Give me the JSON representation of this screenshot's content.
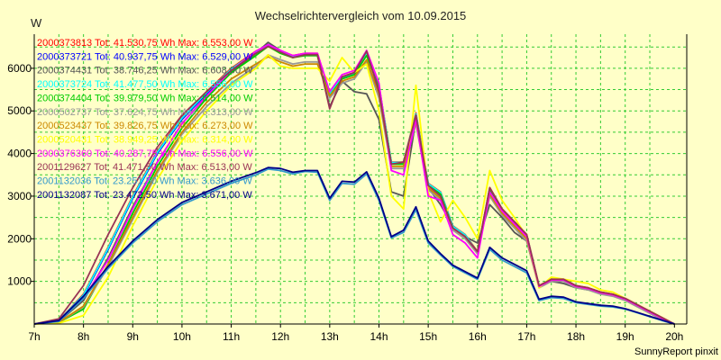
{
  "chart_data": {
    "type": "line",
    "title": "Wechselrichtervergleich vom 10.09.2015",
    "y_unit": "W",
    "ylim": [
      0,
      6800
    ],
    "xlim": [
      7.0,
      20.25
    ],
    "grid": true,
    "legend_position": "top-left",
    "x_tick_labels": [
      "7h",
      "8h",
      "9h",
      "10h",
      "11h",
      "12h",
      "13h",
      "14h",
      "15h",
      "16h",
      "17h",
      "18h",
      "19h",
      "20h"
    ],
    "y_tick_labels": [
      "1000",
      "2000",
      "3000",
      "4000",
      "5000",
      "6000"
    ],
    "footer": "SunnyReport pinxit",
    "series": [
      {
        "name": "2000373813 Tot: 41.530,75 Wh Max: 6.553,00 W",
        "color": "#ff0000",
        "x": [
          7.0,
          7.5,
          8.0,
          8.5,
          9.0,
          9.5,
          10.0,
          10.5,
          11.0,
          11.5,
          11.75,
          12.0,
          12.25,
          12.5,
          12.75,
          13.0,
          13.25,
          13.5,
          13.75,
          14.0,
          14.25,
          14.5,
          14.75,
          15.0,
          15.25,
          15.5,
          15.75,
          16.0,
          16.25,
          16.5,
          16.75,
          17.0,
          17.25,
          17.5,
          17.75,
          18.0,
          18.25,
          18.5,
          18.75,
          19.0,
          19.25,
          19.5,
          19.75,
          20.0
        ],
        "y": [
          0,
          80,
          700,
          1800,
          3000,
          4050,
          4850,
          5450,
          6000,
          6400,
          6553,
          6400,
          6300,
          6350,
          6350,
          5400,
          5800,
          5900,
          6350,
          5600,
          3800,
          3800,
          4950,
          3300,
          3100,
          2300,
          2100,
          1700,
          3200,
          2700,
          2400,
          2100,
          900,
          1050,
          1050,
          900,
          850,
          750,
          700,
          600,
          450,
          300,
          150,
          0
        ]
      },
      {
        "name": "2000373721 Tot: 40.937,75 Wh Max: 6.529,00 W",
        "color": "#0000ff",
        "x": [
          7.0,
          7.5,
          8.0,
          8.5,
          9.0,
          9.5,
          10.0,
          10.5,
          11.0,
          11.5,
          11.75,
          12.0,
          12.25,
          12.5,
          12.75,
          13.0,
          13.25,
          13.5,
          13.75,
          14.0,
          14.25,
          14.5,
          14.75,
          15.0,
          15.25,
          15.5,
          15.75,
          16.0,
          16.25,
          16.5,
          16.75,
          17.0,
          17.25,
          17.5,
          17.75,
          18.0,
          18.25,
          18.5,
          18.75,
          19.0,
          19.25,
          19.5,
          19.75,
          20.0
        ],
        "y": [
          0,
          80,
          650,
          1750,
          2950,
          4000,
          4800,
          5400,
          5950,
          6350,
          6529,
          6380,
          6280,
          6330,
          6330,
          5380,
          5780,
          5880,
          6330,
          5580,
          3780,
          3780,
          4900,
          3280,
          3080,
          2280,
          2080,
          1680,
          3180,
          2680,
          2380,
          2080,
          880,
          1030,
          1030,
          880,
          830,
          730,
          680,
          580,
          430,
          280,
          130,
          0
        ]
      },
      {
        "name": "2000374431 Tot: 38.746,25 Wh Max: 6.608,00 W",
        "color": "#555555",
        "x": [
          7.0,
          7.5,
          8.0,
          8.5,
          9.0,
          9.5,
          10.0,
          10.5,
          11.0,
          11.5,
          11.75,
          12.0,
          12.25,
          12.5,
          12.75,
          13.0,
          13.25,
          13.5,
          13.75,
          14.0,
          14.25,
          14.5,
          14.75,
          15.0,
          15.25,
          15.5,
          15.75,
          16.0,
          16.25,
          16.5,
          16.75,
          17.0,
          17.25,
          17.5,
          17.75,
          18.0,
          18.25,
          18.5,
          18.75,
          19.0,
          19.25,
          19.5,
          19.75,
          20.0
        ],
        "y": [
          0,
          60,
          550,
          1550,
          2750,
          3800,
          4700,
          5350,
          5900,
          6350,
          6608,
          6420,
          6280,
          6300,
          6300,
          5100,
          5700,
          5450,
          5400,
          4800,
          3100,
          3000,
          4800,
          3200,
          2800,
          2300,
          2050,
          1900,
          2800,
          2500,
          2150,
          1950,
          900,
          1000,
          950,
          850,
          800,
          730,
          680,
          580,
          430,
          280,
          130,
          0
        ]
      },
      {
        "name": "2000373724 Tot: 41.477,50 Wh Max: 6.556,00 W",
        "color": "#00ffff",
        "x": [
          7.0,
          7.5,
          8.0,
          8.5,
          9.0,
          9.5,
          10.0,
          10.5,
          11.0,
          11.5,
          11.75,
          12.0,
          12.25,
          12.5,
          12.75,
          13.0,
          13.25,
          13.5,
          13.75,
          14.0,
          14.25,
          14.5,
          14.75,
          15.0,
          15.25,
          15.5,
          15.75,
          16.0,
          16.25,
          16.5,
          16.75,
          17.0,
          17.25,
          17.5,
          17.75,
          18.0,
          18.25,
          18.5,
          18.75,
          19.0,
          19.25,
          19.5,
          19.75,
          20.0
        ],
        "y": [
          0,
          80,
          680,
          1780,
          2980,
          4030,
          4830,
          5430,
          5980,
          6380,
          6556,
          6390,
          6290,
          6340,
          6340,
          5390,
          5790,
          5890,
          6340,
          5590,
          3790,
          3790,
          4930,
          3290,
          3090,
          2290,
          2090,
          1690,
          3190,
          2690,
          2390,
          2090,
          890,
          1040,
          1040,
          890,
          840,
          740,
          690,
          590,
          440,
          290,
          140,
          0
        ]
      },
      {
        "name": "2000374404 Tot: 39.979,50 Wh Max: 6.514,00 W",
        "color": "#00cc00",
        "x": [
          7.0,
          7.5,
          8.0,
          8.5,
          9.0,
          9.5,
          10.0,
          10.5,
          11.0,
          11.5,
          11.75,
          12.0,
          12.25,
          12.5,
          12.75,
          13.0,
          13.25,
          13.5,
          13.75,
          14.0,
          14.25,
          14.5,
          14.75,
          15.0,
          15.25,
          15.5,
          15.75,
          16.0,
          16.25,
          16.5,
          16.75,
          17.0,
          17.25,
          17.5,
          17.75,
          18.0,
          18.25,
          18.5,
          18.75,
          19.0,
          19.25,
          19.5,
          19.75,
          20.0
        ],
        "y": [
          0,
          40,
          350,
          1400,
          2600,
          3700,
          4600,
          5300,
          5900,
          6300,
          6514,
          6350,
          6250,
          6300,
          6300,
          5350,
          5750,
          5850,
          6300,
          5550,
          3750,
          3750,
          4850,
          3250,
          3050,
          2250,
          2050,
          1650,
          3150,
          2650,
          2350,
          2050,
          870,
          1020,
          1020,
          870,
          820,
          720,
          670,
          570,
          420,
          270,
          120,
          0
        ]
      },
      {
        "name": "2000502737 Tot: 37.624,75 Wh Max: 6.313,00 W",
        "color": "#999999",
        "x": [
          7.0,
          7.5,
          8.0,
          8.5,
          9.0,
          9.5,
          10.0,
          10.5,
          11.0,
          11.5,
          11.75,
          12.0,
          12.25,
          12.5,
          12.75,
          13.0,
          13.25,
          13.5,
          13.75,
          14.0,
          14.25,
          14.5,
          14.75,
          15.0,
          15.25,
          15.5,
          15.75,
          16.0,
          16.25,
          16.5,
          16.75,
          17.0,
          17.25,
          17.5,
          17.75,
          18.0,
          18.25,
          18.5,
          18.75,
          19.0,
          19.25,
          19.5,
          19.75,
          20.0
        ],
        "y": [
          0,
          40,
          400,
          1350,
          2450,
          3550,
          4450,
          5100,
          5650,
          6050,
          6313,
          6200,
          6100,
          6150,
          6150,
          5300,
          5650,
          5750,
          6150,
          5300,
          3650,
          3650,
          4700,
          3150,
          2900,
          2200,
          2000,
          1650,
          3000,
          2550,
          2250,
          1950,
          850,
          1000,
          1000,
          850,
          800,
          700,
          650,
          550,
          400,
          250,
          100,
          0
        ]
      },
      {
        "name": "2000523437 Tot: 39.826,75 Wh Max: 6.273,00 W",
        "color": "#cc8800",
        "x": [
          7.0,
          7.5,
          8.0,
          8.5,
          9.0,
          9.5,
          10.0,
          10.5,
          11.0,
          11.5,
          11.75,
          12.0,
          12.25,
          12.5,
          12.75,
          13.0,
          13.25,
          13.5,
          13.75,
          14.0,
          14.25,
          14.5,
          14.75,
          15.0,
          15.25,
          15.5,
          15.75,
          16.0,
          16.25,
          16.5,
          16.75,
          17.0,
          17.25,
          17.5,
          17.75,
          18.0,
          18.25,
          18.5,
          18.75,
          19.0,
          19.25,
          19.5,
          19.75,
          20.0
        ],
        "y": [
          0,
          40,
          420,
          1400,
          2500,
          3600,
          4500,
          5200,
          5750,
          6100,
          6273,
          6150,
          6050,
          6100,
          6100,
          5350,
          5700,
          5800,
          6200,
          5400,
          3700,
          3700,
          4750,
          3200,
          2950,
          2250,
          2050,
          1700,
          3050,
          2600,
          2300,
          2000,
          880,
          1030,
          1030,
          880,
          830,
          730,
          680,
          580,
          430,
          280,
          130,
          0
        ]
      },
      {
        "name": "2000520431 Tot: 38.949,25 Wh Max: 6.314,00 W",
        "color": "#ffff00",
        "x": [
          7.0,
          7.5,
          8.0,
          8.5,
          9.0,
          9.5,
          10.0,
          10.5,
          11.0,
          11.5,
          11.75,
          12.0,
          12.25,
          12.5,
          12.75,
          13.0,
          13.25,
          13.5,
          13.75,
          14.0,
          14.25,
          14.5,
          14.75,
          15.0,
          15.25,
          15.5,
          15.75,
          16.0,
          16.25,
          16.5,
          16.75,
          17.0,
          17.25,
          17.5,
          17.75,
          18.0,
          18.25,
          18.5,
          18.75,
          19.0,
          19.25,
          19.5,
          19.75,
          20.0
        ],
        "y": [
          0,
          20,
          200,
          1100,
          2300,
          3400,
          4300,
          5000,
          5600,
          6000,
          6314,
          6050,
          6000,
          6000,
          6000,
          5700,
          6250,
          5900,
          6100,
          5000,
          3000,
          2700,
          5600,
          3100,
          2400,
          2900,
          2500,
          2000,
          3600,
          2900,
          2500,
          2050,
          850,
          1100,
          1050,
          1000,
          950,
          800,
          750,
          600,
          450,
          300,
          150,
          0
        ]
      },
      {
        "name": "2000376360 Tot: 40.287,75 Wh Max: 6.556,00 W",
        "color": "#ff00ff",
        "x": [
          7.0,
          7.5,
          8.0,
          8.5,
          9.0,
          9.5,
          10.0,
          10.5,
          11.0,
          11.5,
          11.75,
          12.0,
          12.25,
          12.5,
          12.75,
          13.0,
          13.25,
          13.5,
          13.75,
          14.0,
          14.25,
          14.5,
          14.75,
          15.0,
          15.25,
          15.5,
          15.75,
          16.0,
          16.25,
          16.5,
          16.75,
          17.0,
          17.25,
          17.5,
          17.75,
          18.0,
          18.25,
          18.5,
          18.75,
          19.0,
          19.25,
          19.5,
          19.75,
          20.0
        ],
        "y": [
          0,
          80,
          600,
          1500,
          2700,
          3800,
          4700,
          5350,
          5950,
          6400,
          6556,
          6420,
          6300,
          6350,
          6350,
          5450,
          5850,
          5950,
          6420,
          5650,
          3600,
          3500,
          4800,
          3000,
          2900,
          2100,
          1900,
          1550,
          3100,
          2650,
          2350,
          2050,
          880,
          1030,
          1030,
          880,
          830,
          730,
          680,
          580,
          430,
          280,
          130,
          0
        ]
      },
      {
        "name": "2001129627 Tot: 41.471,50 Wh Max: 6.513,00 W",
        "color": "#993355",
        "x": [
          7.0,
          7.5,
          8.0,
          8.5,
          9.0,
          9.5,
          10.0,
          10.5,
          11.0,
          11.5,
          11.75,
          12.0,
          12.25,
          12.5,
          12.75,
          13.0,
          13.25,
          13.5,
          13.75,
          14.0,
          14.25,
          14.5,
          14.75,
          15.0,
          15.25,
          15.5,
          15.75,
          16.0,
          16.25,
          16.5,
          16.75,
          17.0,
          17.25,
          17.5,
          17.75,
          18.0,
          18.25,
          18.5,
          18.75,
          19.0,
          19.25,
          19.5,
          19.75,
          20.0
        ],
        "y": [
          0,
          120,
          900,
          2100,
          3200,
          4150,
          4900,
          5450,
          5950,
          6350,
          6513,
          6380,
          6250,
          6320,
          6320,
          5050,
          5800,
          5900,
          6400,
          5450,
          3750,
          3800,
          4900,
          3250,
          3000,
          2250,
          2050,
          1700,
          3200,
          2700,
          2400,
          2100,
          900,
          1050,
          1050,
          900,
          850,
          750,
          700,
          600,
          450,
          300,
          150,
          0
        ]
      },
      {
        "name": "2001132036 Tot: 23.251,50 Wh Max: 3.636,00 W",
        "color": "#3399cc",
        "x": [
          7.0,
          7.5,
          8.0,
          8.5,
          9.0,
          9.5,
          10.0,
          10.5,
          11.0,
          11.5,
          11.75,
          12.0,
          12.25,
          12.5,
          12.75,
          13.0,
          13.25,
          13.5,
          13.75,
          14.0,
          14.25,
          14.5,
          14.75,
          15.0,
          15.25,
          15.5,
          15.75,
          16.0,
          16.25,
          16.5,
          16.75,
          17.0,
          17.25,
          17.5,
          17.75,
          18.0,
          18.25,
          18.5,
          18.75,
          19.0,
          19.25,
          19.5,
          19.75,
          20.0
        ],
        "y": [
          0,
          60,
          600,
          1300,
          1900,
          2400,
          2800,
          3050,
          3300,
          3500,
          3636,
          3600,
          3520,
          3580,
          3560,
          2900,
          3300,
          3280,
          3520,
          2900,
          2020,
          2150,
          2680,
          1900,
          1620,
          1350,
          1200,
          1050,
          1750,
          1500,
          1350,
          1200,
          550,
          620,
          600,
          500,
          460,
          420,
          400,
          350,
          260,
          170,
          80,
          0
        ]
      },
      {
        "name": "2001132087 Tot: 23.472,50 Wh Max: 3.671,00 W",
        "color": "#000088",
        "x": [
          7.0,
          7.5,
          8.0,
          8.5,
          9.0,
          9.5,
          10.0,
          10.5,
          11.0,
          11.5,
          11.75,
          12.0,
          12.25,
          12.5,
          12.75,
          13.0,
          13.25,
          13.5,
          13.75,
          14.0,
          14.25,
          14.5,
          14.75,
          15.0,
          15.25,
          15.5,
          15.75,
          16.0,
          16.25,
          16.5,
          16.75,
          17.0,
          17.25,
          17.5,
          17.75,
          18.0,
          18.25,
          18.5,
          18.75,
          19.0,
          19.25,
          19.5,
          19.75,
          20.0
        ],
        "y": [
          0,
          80,
          650,
          1350,
          1950,
          2450,
          2850,
          3100,
          3350,
          3550,
          3671,
          3650,
          3560,
          3600,
          3600,
          2950,
          3350,
          3330,
          3570,
          2950,
          2050,
          2200,
          2750,
          1950,
          1650,
          1380,
          1230,
          1080,
          1800,
          1550,
          1400,
          1250,
          580,
          650,
          630,
          520,
          480,
          440,
          420,
          360,
          270,
          180,
          90,
          0
        ]
      }
    ]
  }
}
